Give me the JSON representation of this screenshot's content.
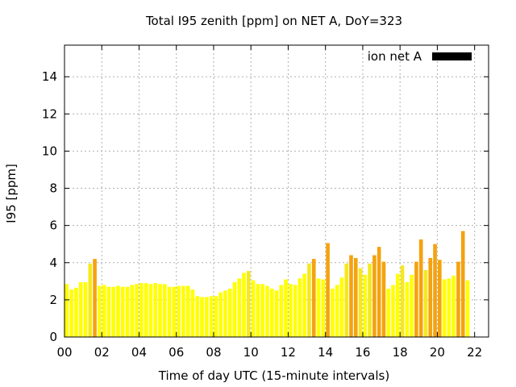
{
  "chart_data": {
    "type": "bar",
    "title": "Total I95 zenith [ppm] on NET A, DoY=323",
    "xlabel": "Time of day UTC (15-minute intervals)",
    "ylabel": "I95 [ppm]",
    "legend": {
      "label": "ion net A",
      "placement": "top-right",
      "color": "#000000"
    },
    "xlim": [
      0,
      22.75
    ],
    "ylim": [
      0,
      15.7
    ],
    "x_ticks": [
      "00",
      "02",
      "04",
      "06",
      "08",
      "10",
      "12",
      "14",
      "16",
      "18",
      "20",
      "22"
    ],
    "y_ticks": [
      "0",
      "2",
      "4",
      "6",
      "8",
      "10",
      "12",
      "14"
    ],
    "grid": true,
    "interval_hours": 0.25,
    "colors": {
      "low": "#ffff00",
      "mid": "#f5e81e",
      "high": "#f5a20f"
    },
    "values": [
      2.85,
      2.55,
      2.65,
      2.95,
      2.95,
      3.95,
      4.2,
      2.75,
      2.8,
      2.7,
      2.7,
      2.75,
      2.7,
      2.7,
      2.8,
      2.85,
      2.9,
      2.9,
      2.85,
      2.9,
      2.85,
      2.85,
      2.7,
      2.7,
      2.75,
      2.75,
      2.75,
      2.55,
      2.2,
      2.15,
      2.15,
      2.2,
      2.2,
      2.4,
      2.5,
      2.6,
      2.95,
      3.15,
      3.45,
      3.55,
      3.05,
      2.85,
      2.85,
      2.75,
      2.6,
      2.5,
      2.8,
      3.1,
      2.85,
      2.8,
      3.15,
      3.4,
      3.95,
      4.2,
      3.15,
      3.1,
      5.05,
      2.6,
      2.8,
      3.2,
      3.95,
      4.4,
      4.25,
      3.7,
      3.35,
      3.95,
      4.4,
      4.85,
      4.05,
      2.6,
      2.8,
      3.4,
      3.85,
      2.95,
      3.35,
      4.05,
      5.25,
      3.6,
      4.25,
      5.0,
      4.15,
      3.1,
      3.15,
      3.3,
      4.05,
      5.7,
      3.05
    ]
  }
}
